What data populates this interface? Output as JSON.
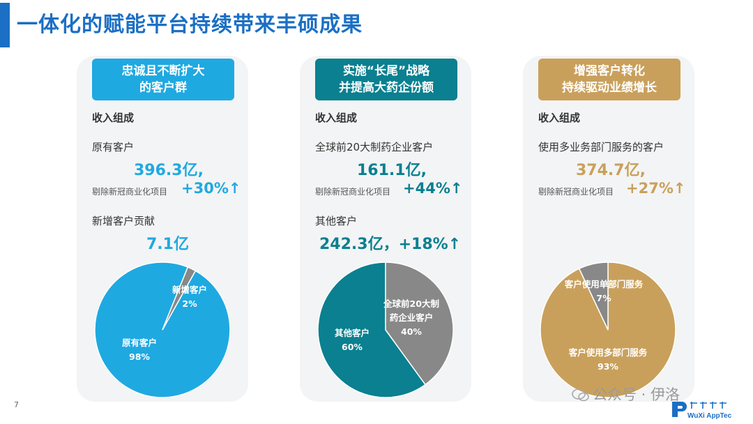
{
  "title": "一体化的赋能平台持续带来丰硕成果",
  "page_number": "7",
  "watermark": "公众号 · 伊洛",
  "logo_text": "WuXi AppTec",
  "colors": {
    "title": "#1b6fc4",
    "panel1": "#1fa9e1",
    "panel2": "#0a8090",
    "panel3": "#c9a05b",
    "gray": "#888888"
  },
  "panels": [
    {
      "header": [
        "忠诚且不断扩大",
        "的客户群"
      ],
      "section": "收入组成",
      "item1_label": "原有客户",
      "item1_value": "396.3亿,",
      "item1_note": "剔除新冠商业化项目",
      "item1_growth": "+30%↑",
      "item2_label": "新增客户贡献",
      "item2_value": "7.1亿"
    },
    {
      "header": [
        "实施“长尾”战略",
        "并提高大药企份额"
      ],
      "section": "收入组成",
      "item1_label": "全球前20大制药企业客户",
      "item1_value": "161.1亿,",
      "item1_note": "剔除新冠商业化项目",
      "item1_growth": "+44%↑",
      "item2_label": "其他客户",
      "item2_value": "242.3亿，+18%↑"
    },
    {
      "header": [
        "增强客户转化",
        "持续驱动业绩增长"
      ],
      "section": "收入组成",
      "item1_label": "使用多业务部门服务的客户",
      "item1_value": "374.7亿,",
      "item1_note": "剔除新冠商业化项目",
      "item1_growth": "+27%↑"
    }
  ],
  "chart_data": [
    {
      "type": "pie",
      "slices": [
        {
          "label": "原有客户",
          "value": 98,
          "value_label": "98%",
          "color": "#1fa9e1"
        },
        {
          "label": "新增客户",
          "value": 2,
          "value_label": "2%",
          "color": "#888888"
        }
      ]
    },
    {
      "type": "pie",
      "slices": [
        {
          "label": "其他客户",
          "value": 60,
          "value_label": "60%",
          "color": "#0a8090"
        },
        {
          "label": "全球前20大制药企业客户",
          "label_lines": [
            "全球前20大制",
            "药企业客户"
          ],
          "value": 40,
          "value_label": "40%",
          "color": "#888888"
        }
      ]
    },
    {
      "type": "pie",
      "slices": [
        {
          "label": "客户使用多部门服务",
          "value": 93,
          "value_label": "93%",
          "color": "#c9a05b"
        },
        {
          "label": "客户使用单部门服务",
          "value": 7,
          "value_label": "7%",
          "color": "#888888"
        }
      ]
    }
  ]
}
